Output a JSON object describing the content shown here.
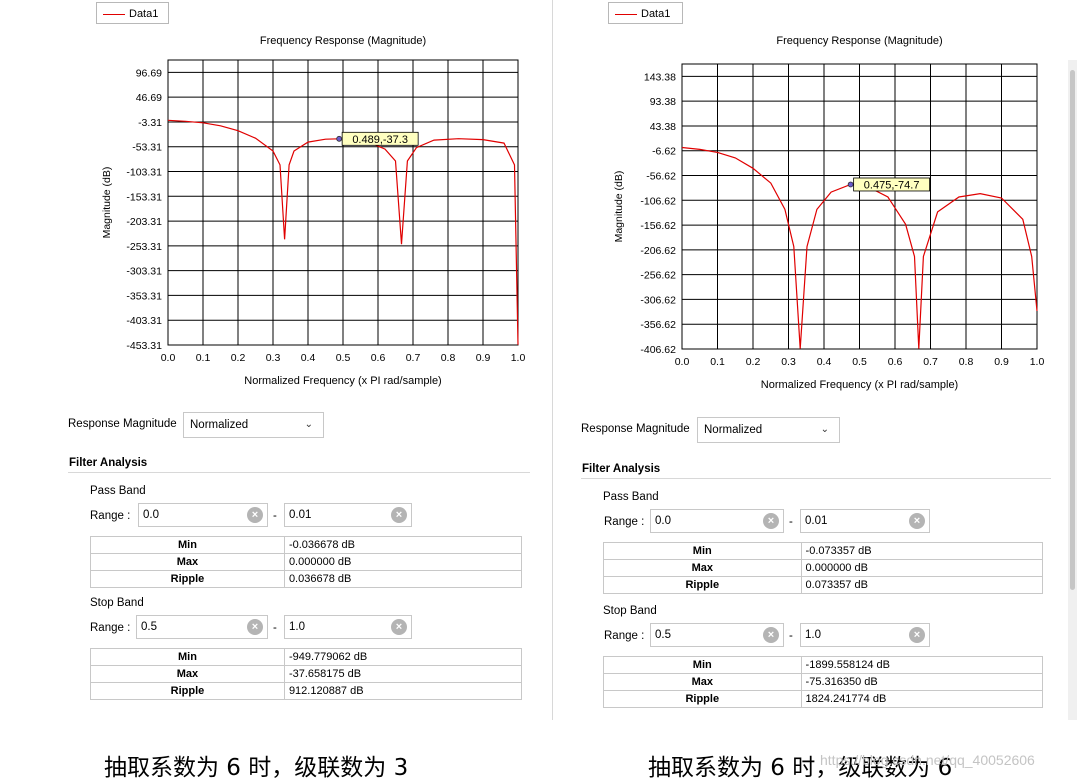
{
  "panels": [
    {
      "legend": "Data1",
      "plot": {
        "title": "Frequency Response (Magnitude)",
        "ylabel": "Magnitude (dB)",
        "xlabel": "Normalized Frequency (x PI rad/sample)",
        "xticks": [
          "0.0",
          "0.1",
          "0.2",
          "0.3",
          "0.4",
          "0.5",
          "0.6",
          "0.7",
          "0.8",
          "0.9",
          "1.0"
        ],
        "yticks": [
          "96.69",
          "46.69",
          "-3.31",
          "-53.31",
          "-103.31",
          "-153.31",
          "-203.31",
          "-253.31",
          "-303.31",
          "-353.31",
          "-403.31",
          "-453.31"
        ],
        "datatip": "0.489,-37.3"
      },
      "response_label": "Response Magnitude",
      "response_value": "Normalized",
      "section": "Filter Analysis",
      "pass": {
        "title": "Pass Band",
        "range_label": "Range :",
        "from": "0.0",
        "to": "0.01",
        "rows": [
          [
            "Min",
            "-0.036678 dB"
          ],
          [
            "Max",
            "0.000000 dB"
          ],
          [
            "Ripple",
            "0.036678 dB"
          ]
        ]
      },
      "stop": {
        "title": "Stop Band",
        "range_label": "Range :",
        "from": "0.5",
        "to": "1.0",
        "rows": [
          [
            "Min",
            "-949.779062 dB"
          ],
          [
            "Max",
            "-37.658175 dB"
          ],
          [
            "Ripple",
            "912.120887 dB"
          ]
        ]
      },
      "caption": "抽取系数为 6 时，级联数为 3"
    },
    {
      "legend": "Data1",
      "plot": {
        "title": "Frequency Response (Magnitude)",
        "ylabel": "Magnitude (dB)",
        "xlabel": "Normalized Frequency (x PI rad/sample)",
        "xticks": [
          "0.0",
          "0.1",
          "0.2",
          "0.3",
          "0.4",
          "0.5",
          "0.6",
          "0.7",
          "0.8",
          "0.9",
          "1.0"
        ],
        "yticks": [
          "143.38",
          "93.38",
          "43.38",
          "-6.62",
          "-56.62",
          "-106.62",
          "-156.62",
          "-206.62",
          "-256.62",
          "-306.62",
          "-356.62",
          "-406.62"
        ],
        "datatip": "0.475,-74.7"
      },
      "response_label": "Response Magnitude",
      "response_value": "Normalized",
      "section": "Filter Analysis",
      "pass": {
        "title": "Pass Band",
        "range_label": "Range :",
        "from": "0.0",
        "to": "0.01",
        "rows": [
          [
            "Min",
            "-0.073357 dB"
          ],
          [
            "Max",
            "0.000000 dB"
          ],
          [
            "Ripple",
            "0.073357 dB"
          ]
        ]
      },
      "stop": {
        "title": "Stop Band",
        "range_label": "Range :",
        "from": "0.5",
        "to": "1.0",
        "rows": [
          [
            "Min",
            "-1899.558124 dB"
          ],
          [
            "Max",
            "-75.316350 dB"
          ],
          [
            "Ripple",
            "1824.241774 dB"
          ]
        ]
      },
      "caption": "抽取系数为 6 时，级联数为 6"
    }
  ],
  "watermark": "https://blog.csdn.net/qq_40052606",
  "chart_data": [
    {
      "type": "line",
      "title": "Frequency Response (Magnitude)",
      "xlabel": "Normalized Frequency (x PI rad/sample)",
      "ylabel": "Magnitude (dB)",
      "xlim": [
        0,
        1
      ],
      "ylim": [
        -453.31,
        121.69
      ],
      "grid": true,
      "legend": "top-left",
      "series": [
        {
          "name": "Data1",
          "color": "#e00000",
          "x": [
            0.0,
            0.05,
            0.1,
            0.15,
            0.2,
            0.25,
            0.3,
            0.32,
            0.333,
            0.346,
            0.36,
            0.4,
            0.45,
            0.489,
            0.53,
            0.58,
            0.62,
            0.65,
            0.667,
            0.684,
            0.71,
            0.76,
            0.83,
            0.9,
            0.96,
            0.99,
            1.0
          ],
          "y": [
            0,
            -2,
            -5,
            -11,
            -21,
            -36,
            -62,
            -90,
            -240,
            -90,
            -62,
            -44,
            -38,
            -37.3,
            -39,
            -46,
            -58,
            -82,
            -250,
            -82,
            -55,
            -40,
            -37,
            -39,
            -46,
            -90,
            -453
          ]
        }
      ],
      "datatip": {
        "x": 0.489,
        "y": -37.3
      }
    },
    {
      "type": "line",
      "title": "Frequency Response (Magnitude)",
      "xlabel": "Normalized Frequency (x PI rad/sample)",
      "ylabel": "Magnitude (dB)",
      "xlim": [
        0,
        1
      ],
      "ylim": [
        -406.62,
        168.38
      ],
      "grid": true,
      "legend": "top-left",
      "series": [
        {
          "name": "Data1",
          "color": "#e00000",
          "x": [
            0.0,
            0.05,
            0.1,
            0.15,
            0.2,
            0.25,
            0.29,
            0.315,
            0.333,
            0.352,
            0.38,
            0.42,
            0.475,
            0.52,
            0.58,
            0.63,
            0.655,
            0.667,
            0.68,
            0.72,
            0.78,
            0.84,
            0.9,
            0.96,
            0.985,
            1.0
          ],
          "y": [
            0,
            -4,
            -10,
            -21,
            -42,
            -72,
            -125,
            -200,
            -406,
            -200,
            -125,
            -90,
            -74.7,
            -78,
            -100,
            -155,
            -220,
            -406,
            -220,
            -130,
            -100,
            -93,
            -102,
            -145,
            -220,
            -330
          ]
        }
      ],
      "datatip": {
        "x": 0.475,
        "y": -74.7
      }
    }
  ]
}
